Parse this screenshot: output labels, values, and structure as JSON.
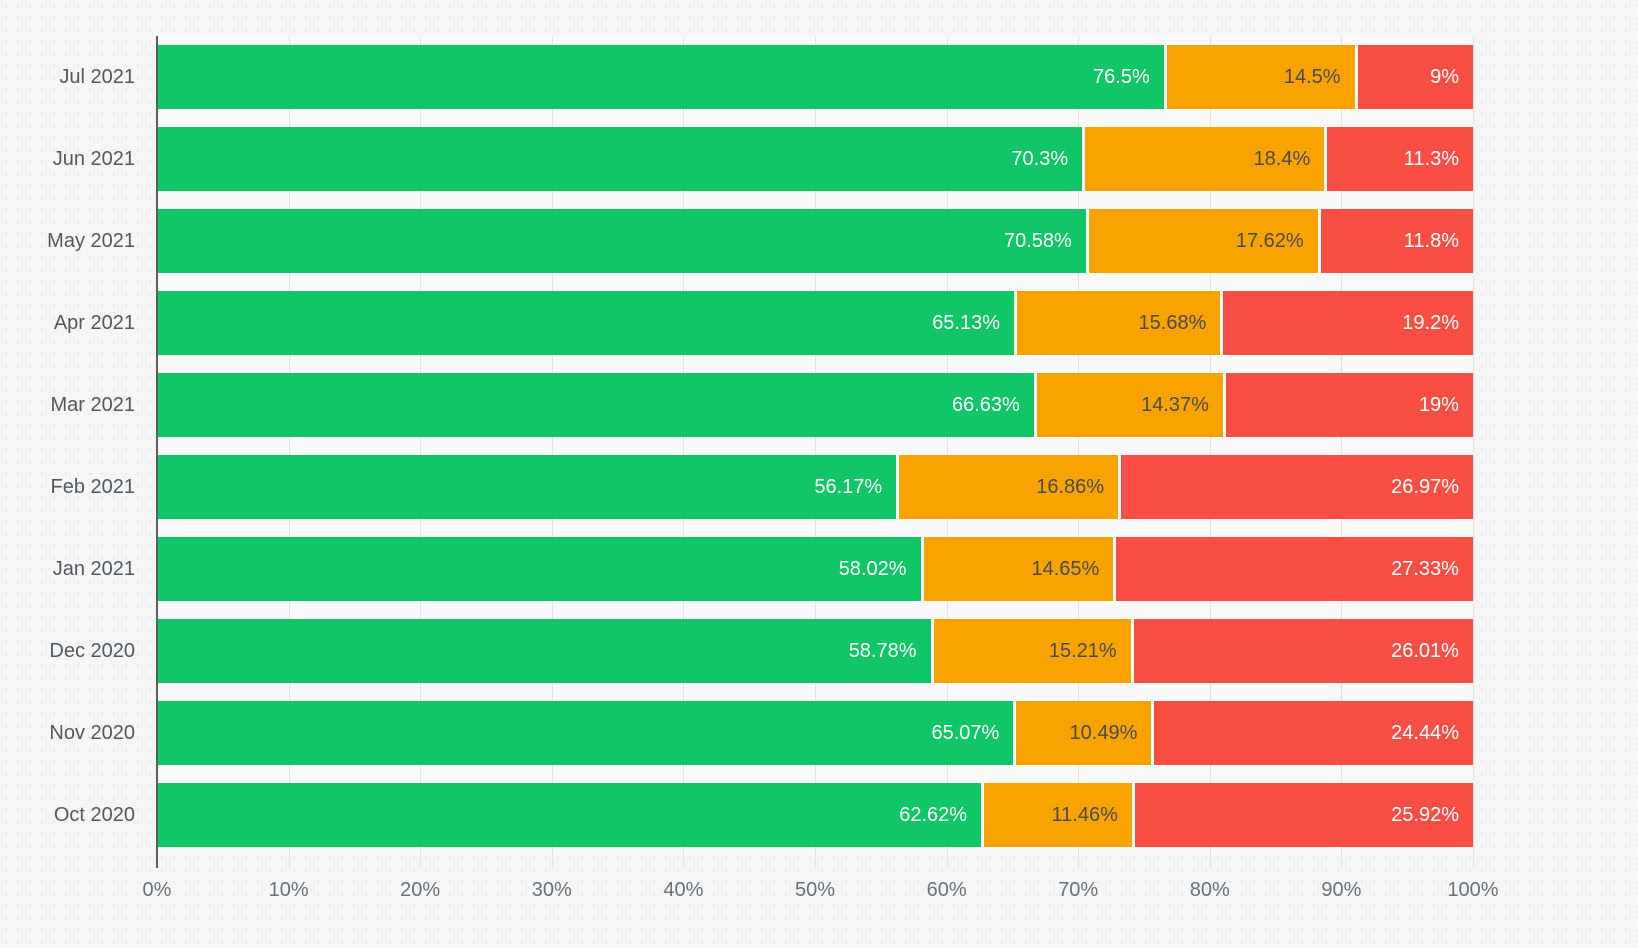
{
  "chart_data": {
    "type": "bar",
    "orientation": "horizontal",
    "stacked": true,
    "title": "",
    "xlabel": "",
    "ylabel": "",
    "xlim": [
      0,
      100
    ],
    "grid": true,
    "legend": false,
    "categories": [
      "Jul 2021",
      "Jun 2021",
      "May 2021",
      "Apr 2021",
      "Mar 2021",
      "Feb 2021",
      "Jan 2021",
      "Dec 2020",
      "Nov 2020",
      "Oct 2020"
    ],
    "x_ticks": [
      "0%",
      "10%",
      "20%",
      "30%",
      "40%",
      "50%",
      "60%",
      "70%",
      "80%",
      "90%",
      "100%"
    ],
    "series": [
      {
        "name": "green-segment",
        "color": "#10c667",
        "label_color": "#ffffff",
        "values": [
          76.5,
          70.3,
          70.58,
          65.13,
          66.63,
          56.17,
          58.02,
          58.78,
          65.07,
          62.62
        ],
        "labels": [
          "76.5%",
          "70.3%",
          "70.58%",
          "65.13%",
          "66.63%",
          "56.17%",
          "58.02%",
          "58.78%",
          "65.07%",
          "62.62%"
        ]
      },
      {
        "name": "orange-segment",
        "color": "#f9a301",
        "label_color": "#4a4a4a",
        "values": [
          14.5,
          18.4,
          17.62,
          15.68,
          14.37,
          16.86,
          14.65,
          15.21,
          10.49,
          11.46
        ],
        "labels": [
          "14.5%",
          "18.4%",
          "17.62%",
          "15.68%",
          "14.37%",
          "16.86%",
          "14.65%",
          "15.21%",
          "10.49%",
          "11.46%"
        ]
      },
      {
        "name": "red-segment",
        "color": "#f94e43",
        "label_color": "#ffffff",
        "values": [
          9,
          11.3,
          11.8,
          19.2,
          19,
          26.97,
          27.33,
          26.01,
          24.44,
          25.92
        ],
        "labels": [
          "9%",
          "11.3%",
          "11.8%",
          "19.2%",
          "19%",
          "26.97%",
          "27.33%",
          "26.01%",
          "24.44%",
          "25.92%"
        ]
      }
    ]
  },
  "style": {
    "plot_background": "#fafafa",
    "page_background": "#f6f6f6",
    "gridline_color": "#e3e5e5",
    "axis_line_color": "#5c6065",
    "y_label_color": "#55585b",
    "x_label_color": "#6c7074",
    "separator_color": "#ffffff"
  }
}
